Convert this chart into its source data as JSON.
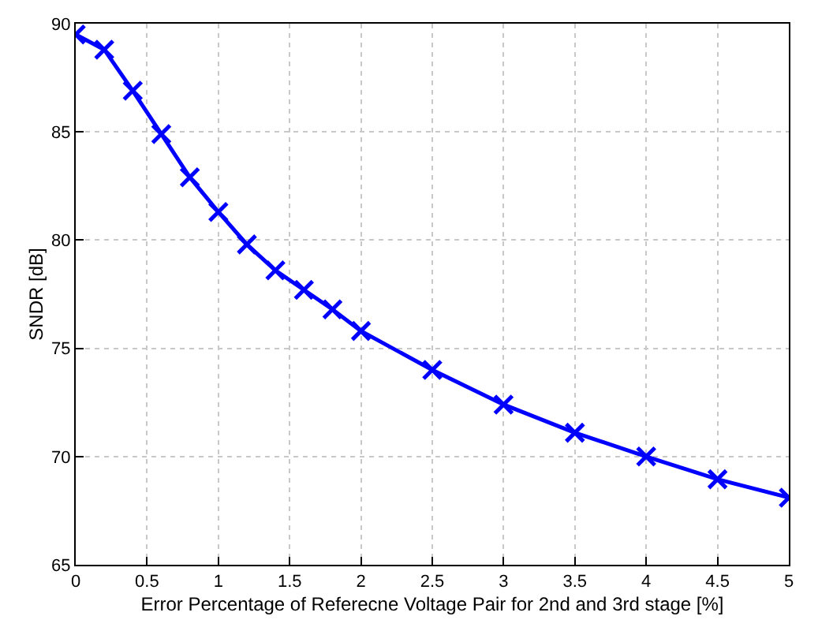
{
  "chart_data": {
    "type": "line",
    "xlabel": "Error Percentage of Referecne Voltage Pair for 2nd and 3rd stage [%]",
    "ylabel": "SNDR [dB]",
    "x": [
      0,
      0.2,
      0.4,
      0.6,
      0.8,
      1.0,
      1.2,
      1.4,
      1.6,
      1.8,
      2.0,
      2.5,
      3.0,
      3.5,
      4.0,
      4.5,
      5.0
    ],
    "series": [
      {
        "color": "#0000ff",
        "values": [
          89.5,
          88.8,
          86.9,
          84.9,
          82.9,
          81.3,
          79.8,
          78.6,
          77.7,
          76.8,
          75.8,
          74.0,
          72.4,
          71.1,
          70.0,
          68.95,
          68.1
        ]
      }
    ],
    "xlim": [
      0,
      5
    ],
    "xticks": [
      0,
      0.5,
      1,
      1.5,
      2,
      2.5,
      3,
      3.5,
      4,
      4.5,
      5
    ],
    "ylim": [
      65,
      90
    ],
    "yticks": [
      65,
      70,
      75,
      80,
      85,
      90
    ],
    "grid": true,
    "marker": "cross",
    "line_style": "solid"
  }
}
